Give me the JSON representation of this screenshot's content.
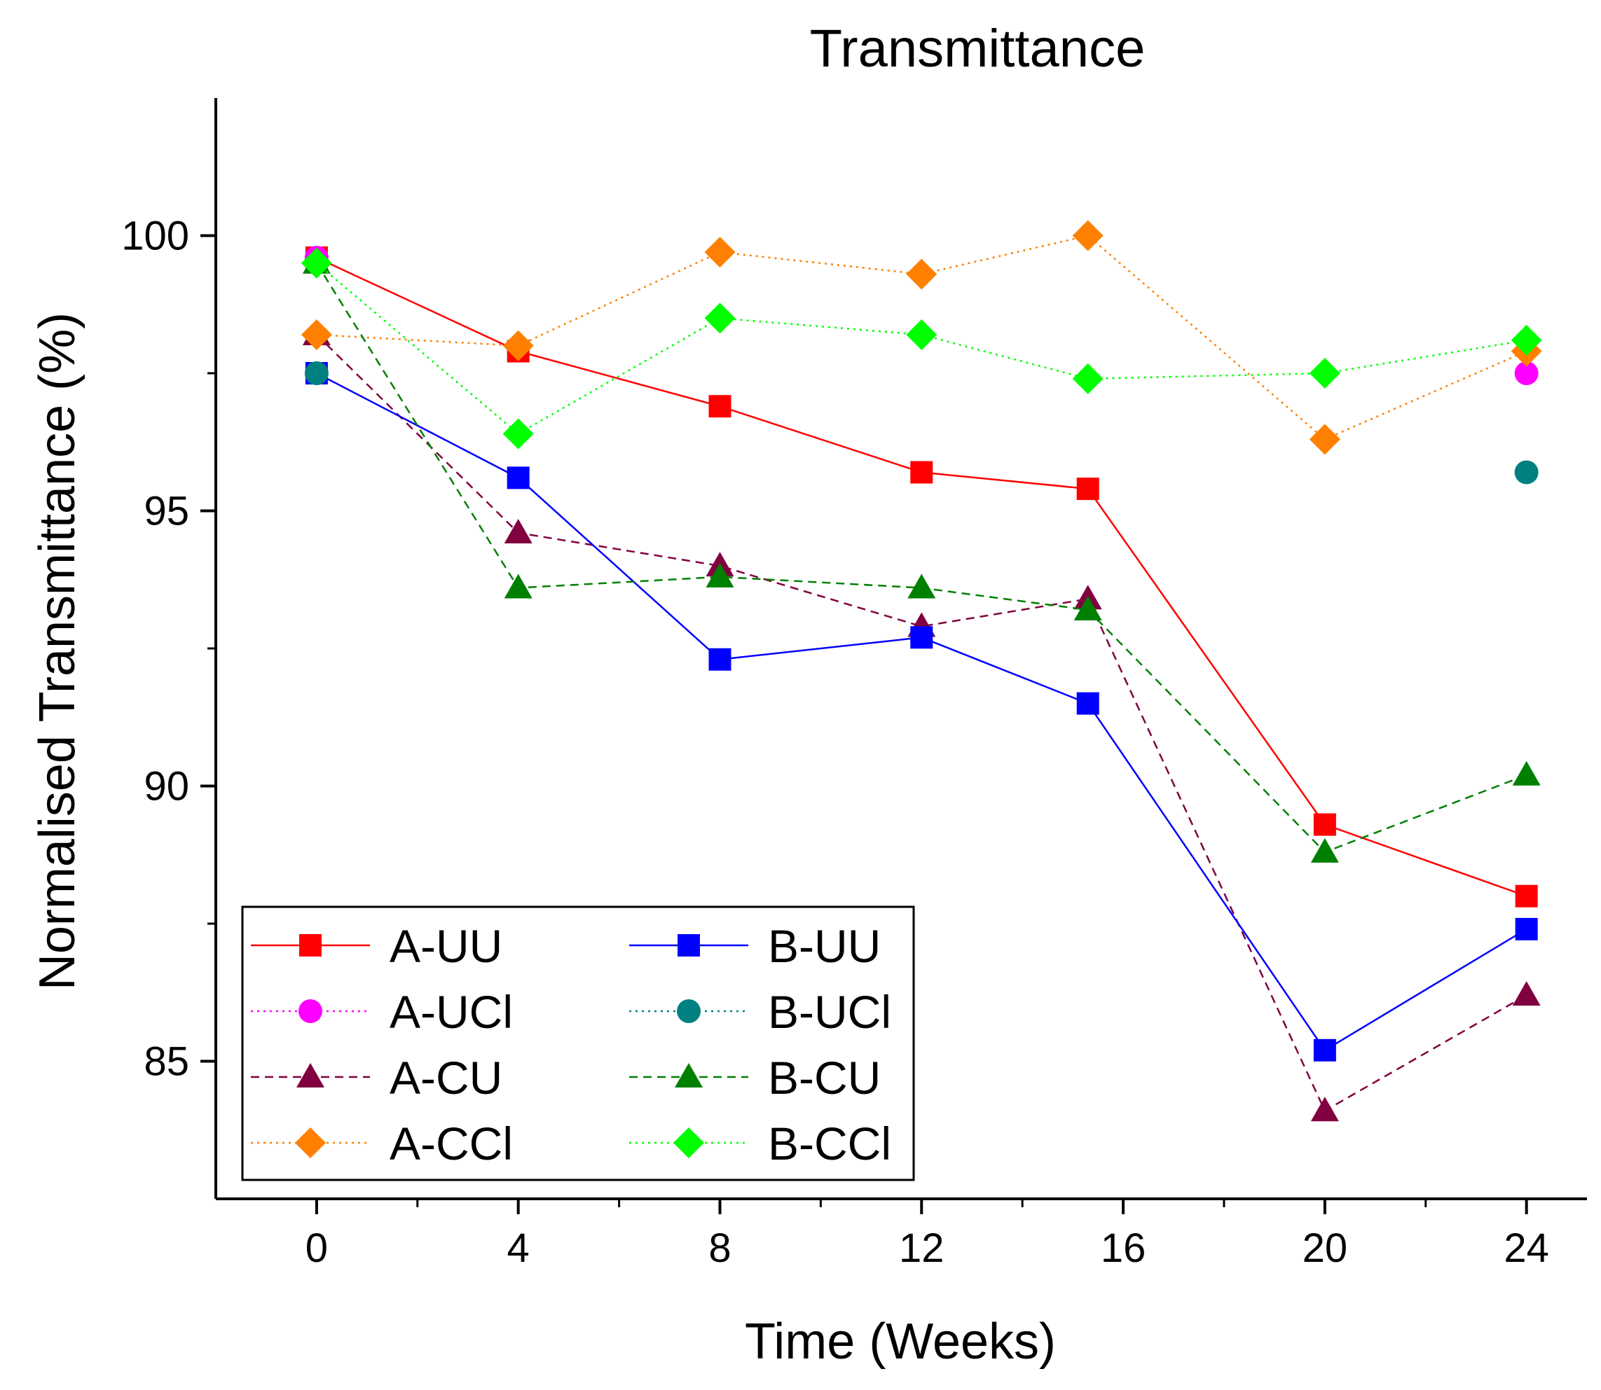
{
  "chart_data": {
    "type": "line",
    "title": "Transmittance",
    "xlabel": "Time (Weeks)",
    "ylabel": "Normalised Transmittance (%)",
    "xlim": [
      -2.0,
      25.2
    ],
    "ylim": [
      82.5,
      102.5
    ],
    "xticks": [
      0,
      4,
      8,
      12,
      16,
      20,
      24
    ],
    "xticks_minor": [
      2,
      6,
      10,
      14,
      18,
      22
    ],
    "yticks": [
      85,
      90,
      95,
      100
    ],
    "yticks_minor": [
      87.5,
      92.5,
      97.5
    ],
    "grid": false,
    "legend_position": "bottom-left",
    "series": [
      {
        "name": "A-UU",
        "color": "#ff0000",
        "marker": "square",
        "line": "solid",
        "x": [
          0,
          4,
          8,
          12,
          15.3,
          20,
          24
        ],
        "y": [
          99.6,
          97.9,
          96.9,
          95.7,
          95.4,
          89.3,
          88.0
        ]
      },
      {
        "name": "A-UCl",
        "color": "#ff00ff",
        "marker": "circle",
        "line": "dotted",
        "x": [
          0,
          24
        ],
        "y": [
          99.6,
          97.5
        ]
      },
      {
        "name": "A-CU",
        "color": "#800040",
        "marker": "triangle",
        "line": "dashed",
        "x": [
          0,
          4,
          8,
          12,
          15.3,
          20,
          24
        ],
        "y": [
          98.2,
          94.6,
          94.0,
          92.9,
          93.4,
          84.1,
          86.2
        ]
      },
      {
        "name": "A-CCl",
        "color": "#ff8000",
        "marker": "diamond",
        "line": "dotted",
        "x": [
          0,
          4,
          8,
          12,
          15.3,
          20,
          24
        ],
        "y": [
          98.2,
          98.0,
          99.7,
          99.3,
          100.0,
          96.3,
          97.9
        ]
      },
      {
        "name": "B-UU",
        "color": "#0000ff",
        "marker": "square",
        "line": "solid",
        "x": [
          0,
          4,
          8,
          12,
          15.3,
          20,
          24
        ],
        "y": [
          97.5,
          95.6,
          92.3,
          92.7,
          91.5,
          85.2,
          87.4
        ]
      },
      {
        "name": "B-UCl",
        "color": "#008080",
        "marker": "circle",
        "line": "dotted",
        "x": [
          0,
          24
        ],
        "y": [
          97.5,
          95.7
        ]
      },
      {
        "name": "B-CU",
        "color": "#008000",
        "marker": "triangle",
        "line": "dashed",
        "x": [
          0,
          4,
          8,
          12,
          15.3,
          20,
          24
        ],
        "y": [
          99.5,
          93.6,
          93.8,
          93.6,
          93.2,
          88.8,
          90.2
        ]
      },
      {
        "name": "B-CCl",
        "color": "#00ff00",
        "marker": "diamond",
        "line": "dotted",
        "x": [
          0,
          4,
          8,
          12,
          15.3,
          20,
          24
        ],
        "y": [
          99.5,
          96.4,
          98.5,
          98.2,
          97.4,
          97.5,
          98.1
        ]
      }
    ]
  }
}
